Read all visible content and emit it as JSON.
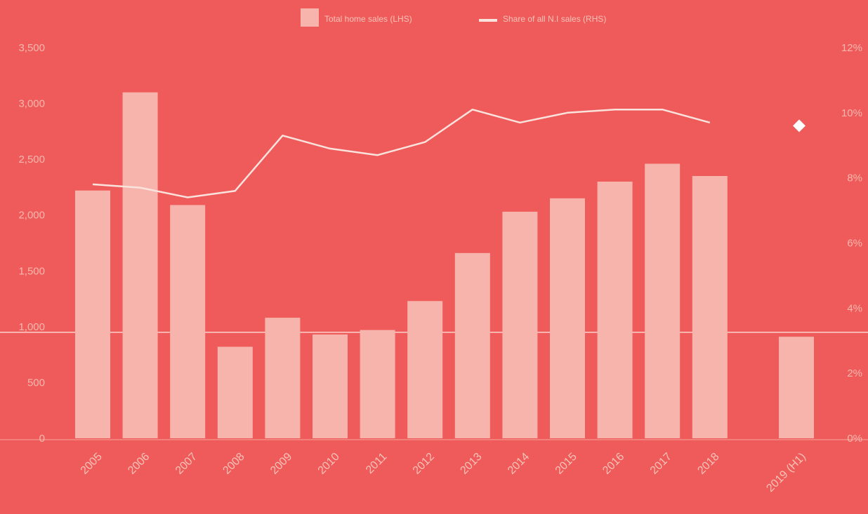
{
  "chart_data": {
    "type": "bar",
    "categories": [
      "2005",
      "2006",
      "2007",
      "2008",
      "2009",
      "2010",
      "2011",
      "2012",
      "2013",
      "2014",
      "2015",
      "2016",
      "2017",
      "2018",
      "2019 (H1)"
    ],
    "series": [
      {
        "name": "Total home sales (LHS)",
        "kind": "bar",
        "axis": "left",
        "values": [
          2220,
          3100,
          2090,
          820,
          1080,
          930,
          970,
          1230,
          1660,
          2030,
          2150,
          2300,
          2460,
          2350,
          910
        ]
      },
      {
        "name": "Share of all N.I sales (RHS)",
        "kind": "line",
        "axis": "right",
        "values": [
          7.8,
          7.7,
          7.4,
          7.6,
          9.3,
          8.9,
          8.7,
          9.1,
          10.1,
          9.7,
          10.0,
          10.1,
          10.1,
          9.7,
          9.6
        ]
      }
    ],
    "yaxis_left": {
      "ticks": [
        "0",
        "500",
        "1,000",
        "1,500",
        "2,000",
        "2,500",
        "3,000",
        "3,500"
      ],
      "ylim": [
        0,
        3500
      ]
    },
    "yaxis_right": {
      "ticks": [
        "0%",
        "2%",
        "4%",
        "6%",
        "8%",
        "10%",
        "12%"
      ],
      "ylim": [
        0,
        12
      ]
    },
    "legend_position": "top-center",
    "colors": {
      "background": "#ef5b5b",
      "bar": "#f6b4ac",
      "line": "#fbe3dd",
      "marker": "#ffffff",
      "text": "#f7c3b8"
    }
  }
}
